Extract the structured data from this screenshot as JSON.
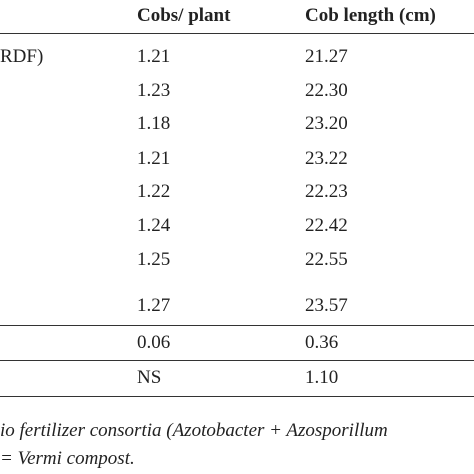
{
  "table": {
    "header": [
      "Cobs/ plant",
      "Cob length (cm)"
    ],
    "rows": [
      {
        "label": "RDF)",
        "values": [
          "1.21",
          "21.27"
        ]
      },
      {
        "values": [
          "1.23",
          "22.30"
        ]
      },
      {
        "values": [
          "1.18",
          "23.20"
        ]
      },
      {
        "values": [
          "1.21",
          "23.22"
        ]
      },
      {
        "values": [
          "1.22",
          "22.23"
        ]
      },
      {
        "values": [
          "1.24",
          "22.42"
        ]
      },
      {
        "values": [
          "1.25",
          "22.55"
        ]
      },
      {
        "values": [
          "1.27",
          "23.57"
        ]
      }
    ],
    "summary_rows": [
      [
        "0.06",
        "0.36"
      ],
      [
        "NS",
        "1.10"
      ]
    ]
  },
  "footnote": [
    "io fertilizer consortia (Azotobacter + Azosporillum",
    "= Vermi compost."
  ]
}
